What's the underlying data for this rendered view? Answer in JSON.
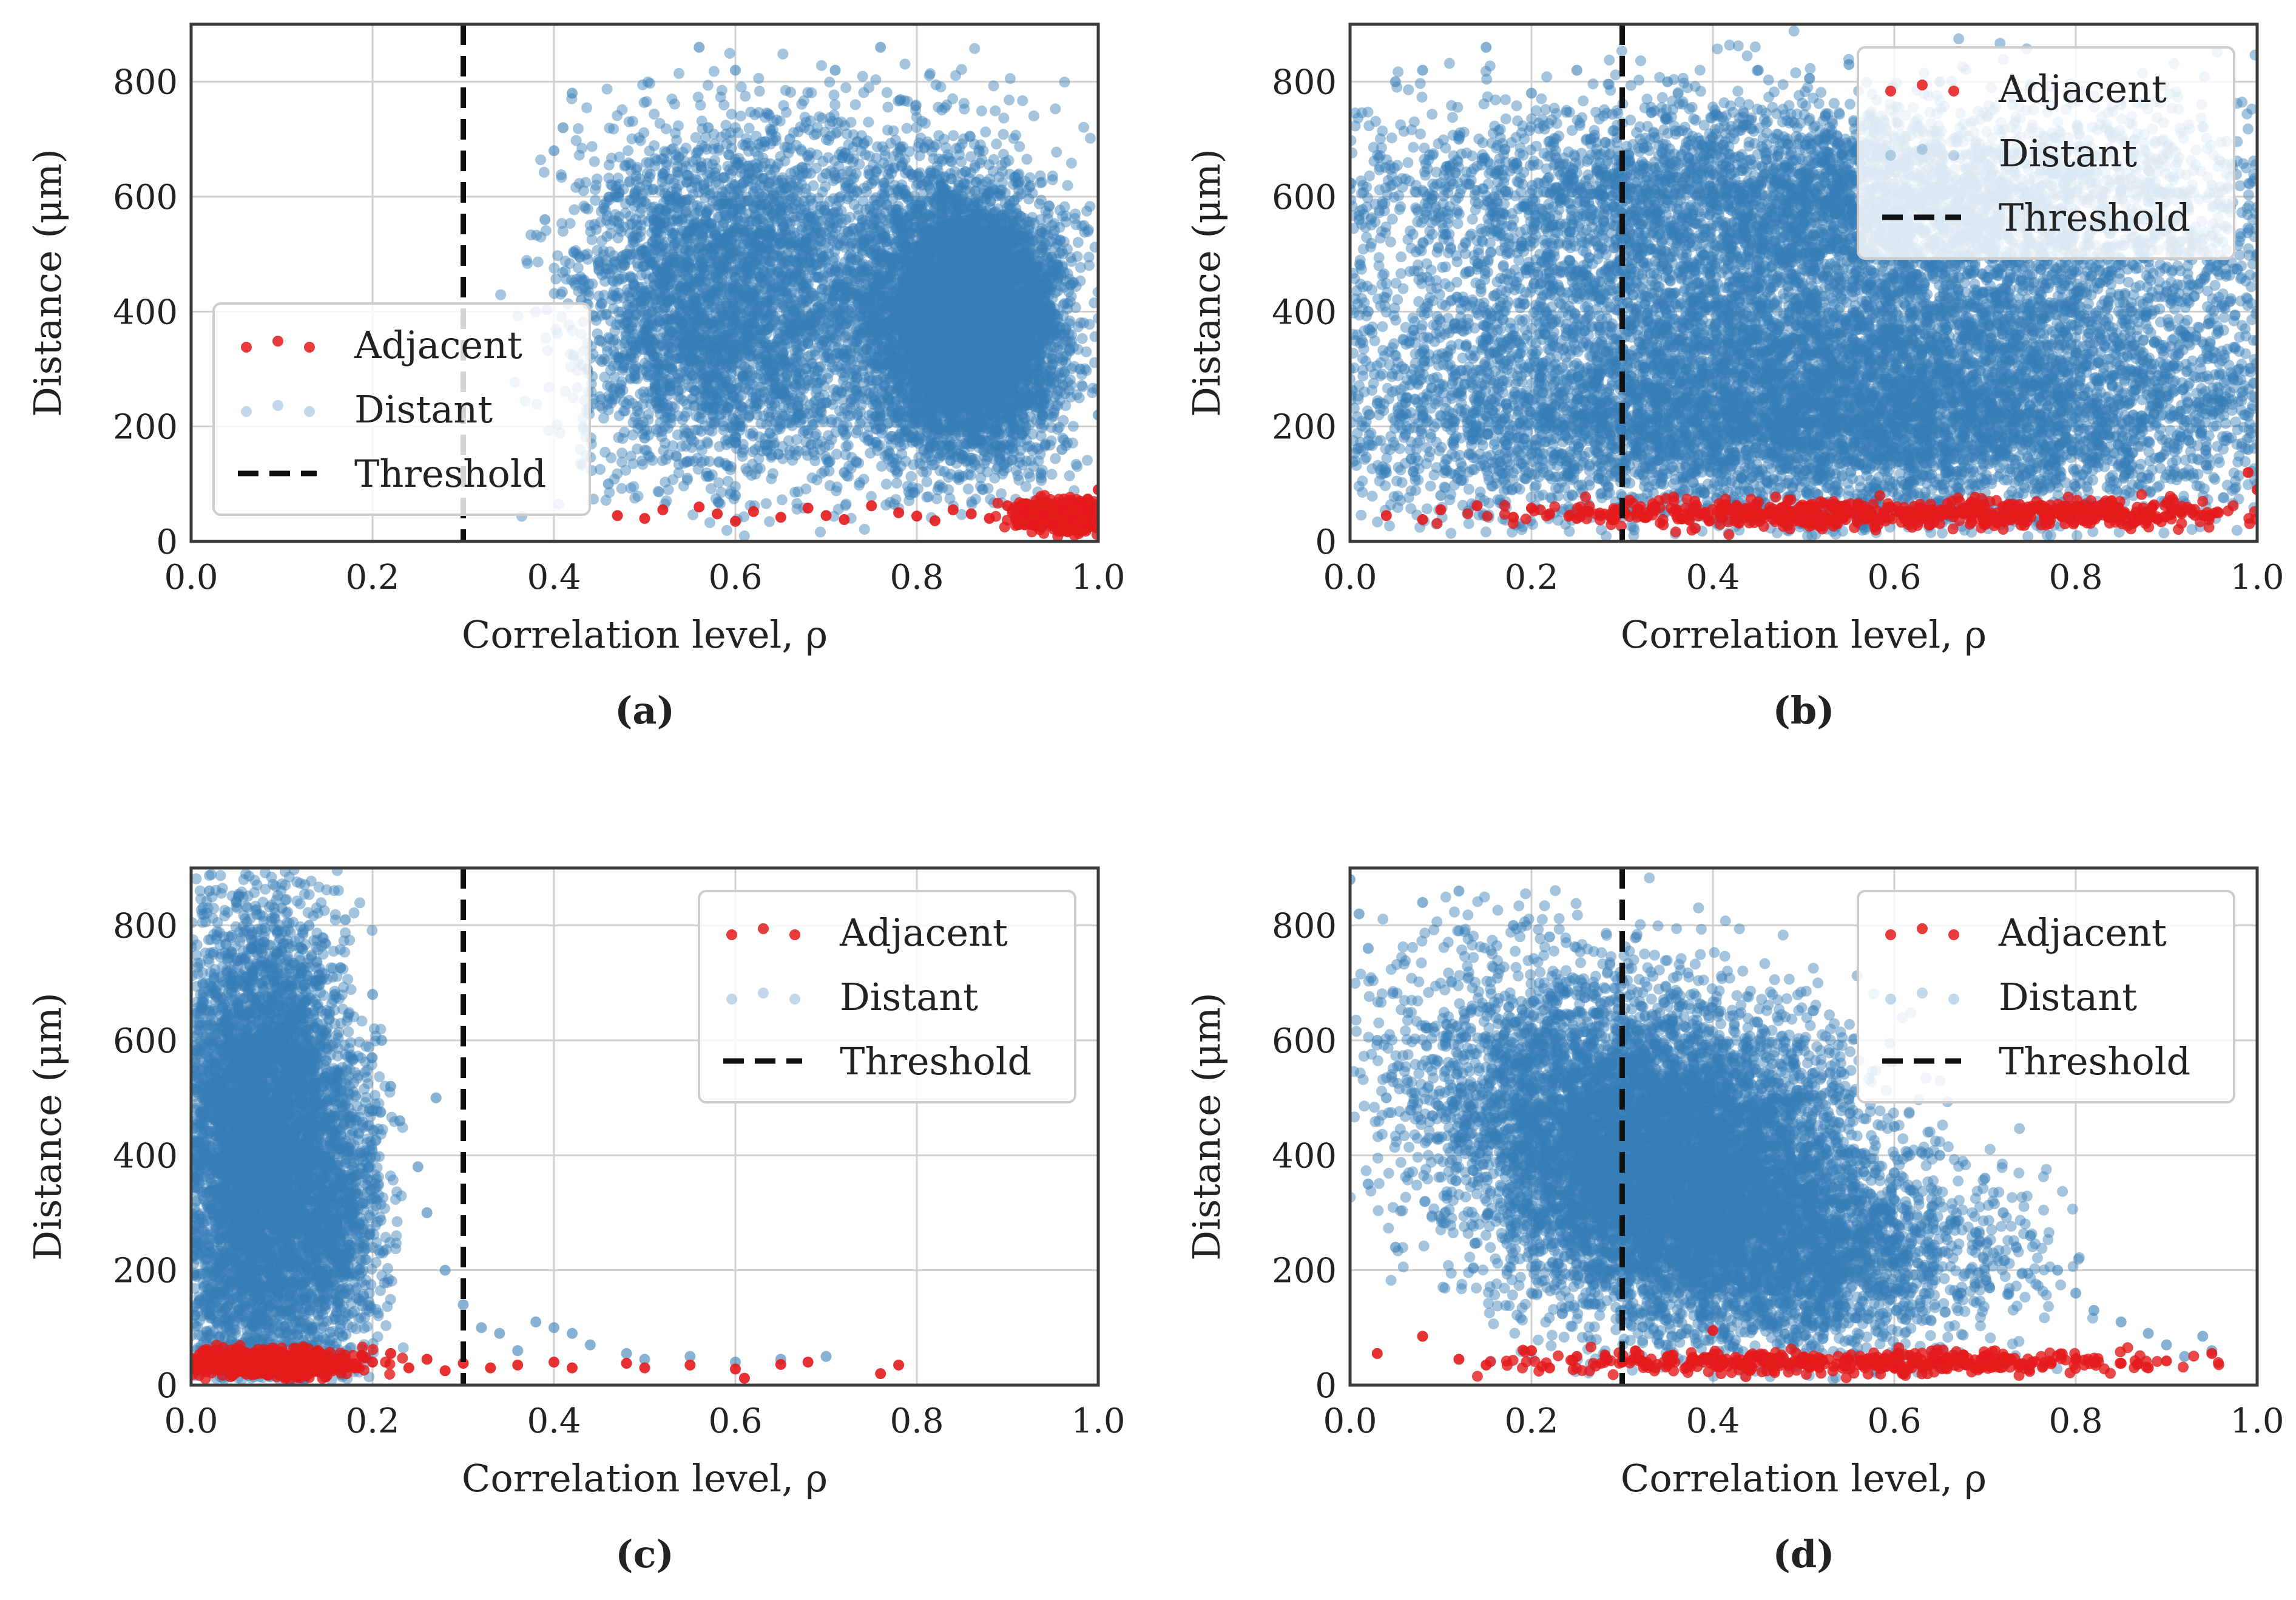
{
  "colors": {
    "adjacent": "#e41a1c",
    "distant": "#377eb8",
    "threshold": "#111111",
    "grid": "#d0d0d0",
    "frame": "#3a3a3a"
  },
  "chart_data": [
    {
      "type": "scatter",
      "caption": "(a)",
      "xlabel": "Correlation level, ρ",
      "ylabel": "Distance (μm)",
      "xlim": [
        0.0,
        1.0
      ],
      "ylim": [
        0,
        900
      ],
      "xticks": [
        "0.0",
        "0.2",
        "0.4",
        "0.6",
        "0.8",
        "1.0"
      ],
      "yticks": [
        "0",
        "200",
        "400",
        "600",
        "800"
      ],
      "grid": true,
      "threshold": 0.3,
      "legend": {
        "placement": "center-left",
        "entries": [
          "Adjacent",
          "Distant",
          "Threshold"
        ]
      },
      "series": [
        {
          "name": "Distant",
          "color": "#377eb8",
          "points": [
            [
              0.41,
              720
            ],
            [
              0.39,
              560
            ],
            [
              0.4,
              680
            ],
            [
              0.42,
              780
            ],
            [
              0.43,
              420
            ],
            [
              0.45,
              350
            ],
            [
              0.47,
              600
            ],
            [
              0.48,
              500
            ],
            [
              0.5,
              180
            ],
            [
              0.5,
              420
            ],
            [
              0.52,
              640
            ],
            [
              0.53,
              300
            ],
            [
              0.55,
              540
            ],
            [
              0.56,
              860
            ],
            [
              0.57,
              720
            ],
            [
              0.58,
              250
            ],
            [
              0.6,
              820
            ],
            [
              0.6,
              460
            ],
            [
              0.62,
              380
            ],
            [
              0.63,
              600
            ],
            [
              0.64,
              150
            ],
            [
              0.65,
              520
            ],
            [
              0.66,
              700
            ],
            [
              0.68,
              280
            ],
            [
              0.7,
              640
            ],
            [
              0.71,
              820
            ],
            [
              0.72,
              420
            ],
            [
              0.74,
              560
            ],
            [
              0.75,
              360
            ],
            [
              0.76,
              860
            ],
            [
              0.78,
              480
            ],
            [
              0.8,
              300
            ],
            [
              0.82,
              640
            ],
            [
              0.84,
              400
            ],
            [
              0.86,
              260
            ],
            [
              0.88,
              520
            ],
            [
              0.9,
              340
            ],
            [
              0.92,
              200
            ],
            [
              0.94,
              440
            ],
            [
              0.96,
              160
            ],
            [
              0.98,
              300
            ],
            [
              1.0,
              220
            ],
            [
              0.46,
              100
            ],
            [
              0.6,
              80
            ],
            [
              0.72,
              120
            ],
            [
              0.85,
              150
            ]
          ],
          "clouds": [
            {
              "cx": 0.86,
              "cy": 380,
              "rx": 0.09,
              "ry": 200,
              "n": 5500
            },
            {
              "cx": 0.7,
              "cy": 420,
              "rx": 0.22,
              "ry": 290,
              "n": 3500
            },
            {
              "cx": 0.55,
              "cy": 420,
              "rx": 0.12,
              "ry": 260,
              "n": 1600
            }
          ]
        },
        {
          "name": "Adjacent",
          "color": "#e41a1c",
          "points": [
            [
              0.47,
              45
            ],
            [
              0.5,
              40
            ],
            [
              0.52,
              55
            ],
            [
              0.56,
              60
            ],
            [
              0.58,
              48
            ],
            [
              0.6,
              35
            ],
            [
              0.62,
              52
            ],
            [
              0.65,
              42
            ],
            [
              0.68,
              58
            ],
            [
              0.7,
              45
            ],
            [
              0.72,
              38
            ],
            [
              0.75,
              62
            ],
            [
              0.78,
              50
            ],
            [
              0.8,
              44
            ],
            [
              0.82,
              36
            ],
            [
              0.84,
              55
            ],
            [
              0.86,
              48
            ],
            [
              0.88,
              40
            ],
            [
              0.9,
              62
            ],
            [
              0.92,
              50
            ],
            [
              0.94,
              45
            ],
            [
              0.96,
              58
            ],
            [
              0.97,
              40
            ],
            [
              0.98,
              70
            ],
            [
              0.99,
              52
            ],
            [
              1.0,
              90
            ],
            [
              1.0,
              35
            ],
            [
              0.95,
              30
            ],
            [
              0.93,
              28
            ],
            [
              0.99,
              25
            ]
          ],
          "clouds": [
            {
              "cx": 0.96,
              "cy": 45,
              "rx": 0.05,
              "ry": 25,
              "n": 450
            }
          ]
        }
      ]
    },
    {
      "type": "scatter",
      "caption": "(b)",
      "xlabel": "Correlation level, ρ",
      "ylabel": "Distance (μm)",
      "xlim": [
        0.0,
        1.0
      ],
      "ylim": [
        0,
        900
      ],
      "xticks": [
        "0.0",
        "0.2",
        "0.4",
        "0.6",
        "0.8",
        "1.0"
      ],
      "yticks": [
        "0",
        "200",
        "400",
        "600",
        "800"
      ],
      "grid": true,
      "threshold": 0.3,
      "legend": {
        "placement": "top-right",
        "entries": [
          "Adjacent",
          "Distant",
          "Threshold"
        ]
      },
      "series": [
        {
          "name": "Distant",
          "color": "#377eb8",
          "points": [
            [
              0.01,
              560
            ],
            [
              0.02,
              400
            ],
            [
              0.03,
              240
            ],
            [
              0.04,
              120
            ],
            [
              0.05,
              800
            ],
            [
              0.06,
              300
            ],
            [
              0.08,
              820
            ],
            [
              0.1,
              80
            ],
            [
              0.12,
              700
            ],
            [
              0.15,
              860
            ],
            [
              0.2,
              780
            ],
            [
              0.25,
              820
            ],
            [
              0.35,
              800
            ],
            [
              0.45,
              820
            ],
            [
              0.55,
              830
            ],
            [
              0.65,
              800
            ],
            [
              0.75,
              790
            ],
            [
              0.85,
              760
            ],
            [
              0.95,
              620
            ],
            [
              1.0,
              500
            ],
            [
              0.98,
              300
            ],
            [
              0.99,
              160
            ]
          ],
          "clouds": [
            {
              "cx": 0.53,
              "cy": 400,
              "rx": 0.48,
              "ry": 310,
              "n": 8500
            },
            {
              "cx": 0.5,
              "cy": 200,
              "rx": 0.5,
              "ry": 140,
              "n": 4000
            },
            {
              "cx": 0.5,
              "cy": 620,
              "rx": 0.45,
              "ry": 120,
              "n": 2000
            }
          ]
        },
        {
          "name": "Adjacent",
          "color": "#e41a1c",
          "points": [
            [
              0.04,
              45
            ],
            [
              0.08,
              38
            ],
            [
              0.1,
              55
            ],
            [
              0.14,
              62
            ],
            [
              0.18,
              42
            ],
            [
              0.2,
              58
            ],
            [
              0.22,
              48
            ],
            [
              0.25,
              40
            ],
            [
              0.99,
              120
            ],
            [
              1.0,
              90
            ]
          ],
          "clouds": [
            {
              "cx": 0.62,
              "cy": 48,
              "rx": 0.38,
              "ry": 22,
              "n": 700
            }
          ]
        }
      ]
    },
    {
      "type": "scatter",
      "caption": "(c)",
      "xlabel": "Correlation level, ρ",
      "ylabel": "Distance (μm)",
      "xlim": [
        0.0,
        1.0
      ],
      "ylim": [
        0,
        900
      ],
      "xticks": [
        "0.0",
        "0.2",
        "0.4",
        "0.6",
        "0.8",
        "1.0"
      ],
      "yticks": [
        "0",
        "200",
        "400",
        "600",
        "800"
      ],
      "grid": true,
      "threshold": 0.3,
      "legend": {
        "placement": "top-right",
        "entries": [
          "Adjacent",
          "Distant",
          "Threshold"
        ]
      },
      "series": [
        {
          "name": "Distant",
          "color": "#377eb8",
          "points": [
            [
              0.02,
              860
            ],
            [
              0.05,
              840
            ],
            [
              0.1,
              830
            ],
            [
              0.13,
              800
            ],
            [
              0.17,
              810
            ],
            [
              0.2,
              680
            ],
            [
              0.21,
              600
            ],
            [
              0.22,
              520
            ],
            [
              0.23,
              460
            ],
            [
              0.25,
              380
            ],
            [
              0.26,
              300
            ],
            [
              0.27,
              500
            ],
            [
              0.28,
              200
            ],
            [
              0.3,
              140
            ],
            [
              0.32,
              100
            ],
            [
              0.34,
              90
            ],
            [
              0.36,
              60
            ],
            [
              0.38,
              110
            ],
            [
              0.4,
              100
            ],
            [
              0.42,
              90
            ],
            [
              0.44,
              70
            ],
            [
              0.48,
              55
            ],
            [
              0.5,
              45
            ],
            [
              0.55,
              50
            ],
            [
              0.6,
              40
            ],
            [
              0.65,
              45
            ],
            [
              0.7,
              50
            ]
          ],
          "clouds": [
            {
              "cx": 0.075,
              "cy": 400,
              "rx": 0.085,
              "ry": 380,
              "n": 6000
            },
            {
              "cx": 0.16,
              "cy": 300,
              "rx": 0.05,
              "ry": 260,
              "n": 900
            }
          ]
        },
        {
          "name": "Adjacent",
          "color": "#e41a1c",
          "points": [
            [
              0.2,
              40
            ],
            [
              0.22,
              55
            ],
            [
              0.24,
              30
            ],
            [
              0.26,
              45
            ],
            [
              0.28,
              25
            ],
            [
              0.3,
              38
            ],
            [
              0.33,
              30
            ],
            [
              0.36,
              35
            ],
            [
              0.4,
              40
            ],
            [
              0.42,
              30
            ],
            [
              0.48,
              38
            ],
            [
              0.5,
              30
            ],
            [
              0.55,
              35
            ],
            [
              0.6,
              28
            ],
            [
              0.61,
              12
            ],
            [
              0.65,
              36
            ],
            [
              0.68,
              40
            ],
            [
              0.76,
              20
            ],
            [
              0.78,
              35
            ]
          ],
          "clouds": [
            {
              "cx": 0.08,
              "cy": 38,
              "rx": 0.09,
              "ry": 22,
              "n": 650
            }
          ]
        }
      ]
    },
    {
      "type": "scatter",
      "caption": "(d)",
      "xlabel": "Correlation level, ρ",
      "ylabel": "Distance (μm)",
      "xlim": [
        0.0,
        1.0
      ],
      "ylim": [
        0,
        900
      ],
      "xticks": [
        "0.0",
        "0.2",
        "0.4",
        "0.6",
        "0.8",
        "1.0"
      ],
      "yticks": [
        "0",
        "200",
        "400",
        "600",
        "800"
      ],
      "grid": true,
      "threshold": 0.3,
      "legend": {
        "placement": "top-right",
        "entries": [
          "Adjacent",
          "Distant",
          "Threshold"
        ]
      },
      "series": [
        {
          "name": "Distant",
          "color": "#377eb8",
          "points": [
            [
              0.0,
              880
            ],
            [
              0.01,
              820
            ],
            [
              0.02,
              760
            ],
            [
              0.03,
              600
            ],
            [
              0.04,
              500
            ],
            [
              0.02,
              350
            ],
            [
              0.05,
              240
            ],
            [
              0.08,
              840
            ],
            [
              0.12,
              860
            ],
            [
              0.18,
              800
            ],
            [
              0.22,
              780
            ],
            [
              0.6,
              450
            ],
            [
              0.65,
              400
            ],
            [
              0.7,
              360
            ],
            [
              0.72,
              300
            ],
            [
              0.75,
              260
            ],
            [
              0.78,
              200
            ],
            [
              0.8,
              160
            ],
            [
              0.82,
              130
            ],
            [
              0.85,
              110
            ],
            [
              0.88,
              90
            ],
            [
              0.9,
              70
            ],
            [
              0.94,
              85
            ],
            [
              0.95,
              60
            ],
            [
              0.92,
              50
            ]
          ],
          "clouds": [
            {
              "cx": 0.36,
              "cy": 380,
              "rx": 0.18,
              "ry": 230,
              "n": 6500
            },
            {
              "cx": 0.5,
              "cy": 220,
              "rx": 0.2,
              "ry": 150,
              "n": 2200
            },
            {
              "cx": 0.22,
              "cy": 520,
              "rx": 0.18,
              "ry": 230,
              "n": 1800
            }
          ]
        },
        {
          "name": "Adjacent",
          "color": "#e41a1c",
          "points": [
            [
              0.03,
              55
            ],
            [
              0.08,
              85
            ],
            [
              0.12,
              45
            ],
            [
              0.15,
              35
            ],
            [
              0.2,
              60
            ],
            [
              0.22,
              30
            ],
            [
              0.25,
              50
            ],
            [
              0.3,
              40
            ],
            [
              0.35,
              35
            ],
            [
              0.4,
              95
            ],
            [
              0.45,
              50
            ],
            [
              0.5,
              38
            ],
            [
              0.55,
              45
            ],
            [
              0.6,
              30
            ],
            [
              0.65,
              42
            ],
            [
              0.7,
              50
            ],
            [
              0.75,
              35
            ],
            [
              0.8,
              45
            ],
            [
              0.85,
              38
            ],
            [
              0.88,
              30
            ],
            [
              0.9,
              42
            ],
            [
              0.95,
              55
            ]
          ],
          "clouds": [
            {
              "cx": 0.55,
              "cy": 40,
              "rx": 0.3,
              "ry": 18,
              "n": 450
            }
          ]
        }
      ]
    }
  ]
}
